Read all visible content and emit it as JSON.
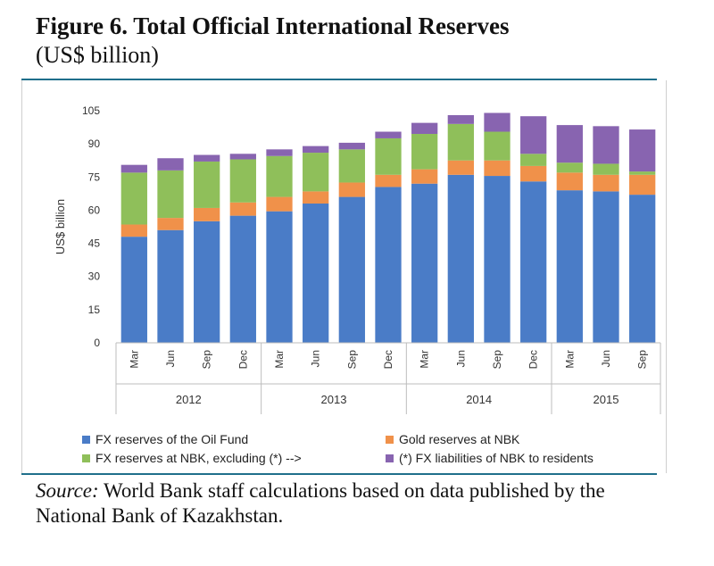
{
  "figure": {
    "title": "Figure 6. Total Official International Reserves",
    "subtitle": "(US$ billion)",
    "source_label": "Source:",
    "source_text": "World Bank staff calculations based on data published by the National Bank of Kazakhstan."
  },
  "chart_data": {
    "type": "bar",
    "stacked": true,
    "ylabel": "US$ billion",
    "ylim": [
      0,
      105
    ],
    "yticks": [
      0,
      15,
      30,
      45,
      60,
      75,
      90,
      105
    ],
    "grid": false,
    "legend_position": "bottom",
    "categories": [
      "Mar",
      "Jun",
      "Sep",
      "Dec",
      "Mar",
      "Jun",
      "Sep",
      "Dec",
      "Mar",
      "Jun",
      "Sep",
      "Dec",
      "Mar",
      "Jun",
      "Sep"
    ],
    "groups": [
      {
        "label": "2012",
        "count": 4
      },
      {
        "label": "2013",
        "count": 4
      },
      {
        "label": "2014",
        "count": 4
      },
      {
        "label": "2015",
        "count": 3
      }
    ],
    "series": [
      {
        "name": "FX reserves of the Oil Fund",
        "color": "#4a7cc7",
        "values": [
          48,
          51,
          55,
          57.5,
          59.5,
          63,
          66,
          70.5,
          72,
          76,
          75.5,
          73,
          69,
          68.5,
          67
        ]
      },
      {
        "name": "Gold reserves at NBK",
        "color": "#f0914a",
        "values": [
          5.5,
          5.5,
          6,
          6,
          6.5,
          5.5,
          6.5,
          5.5,
          6.5,
          6.5,
          7,
          7,
          8,
          7.5,
          9
        ]
      },
      {
        "name": "FX reserves at NBK, excluding (*) -->",
        "color": "#8fbf5a",
        "values": [
          23.5,
          21.5,
          21,
          19.5,
          18.5,
          17.5,
          15,
          16.5,
          16,
          16.5,
          13,
          5.5,
          4.5,
          5,
          1.5
        ]
      },
      {
        "name": "(*) FX liabilities of NBK to residents",
        "color": "#8864b0",
        "values": [
          3.5,
          5.5,
          3,
          2.5,
          3,
          3,
          3,
          3,
          5,
          4,
          8.5,
          17,
          17,
          17,
          19
        ]
      }
    ]
  }
}
